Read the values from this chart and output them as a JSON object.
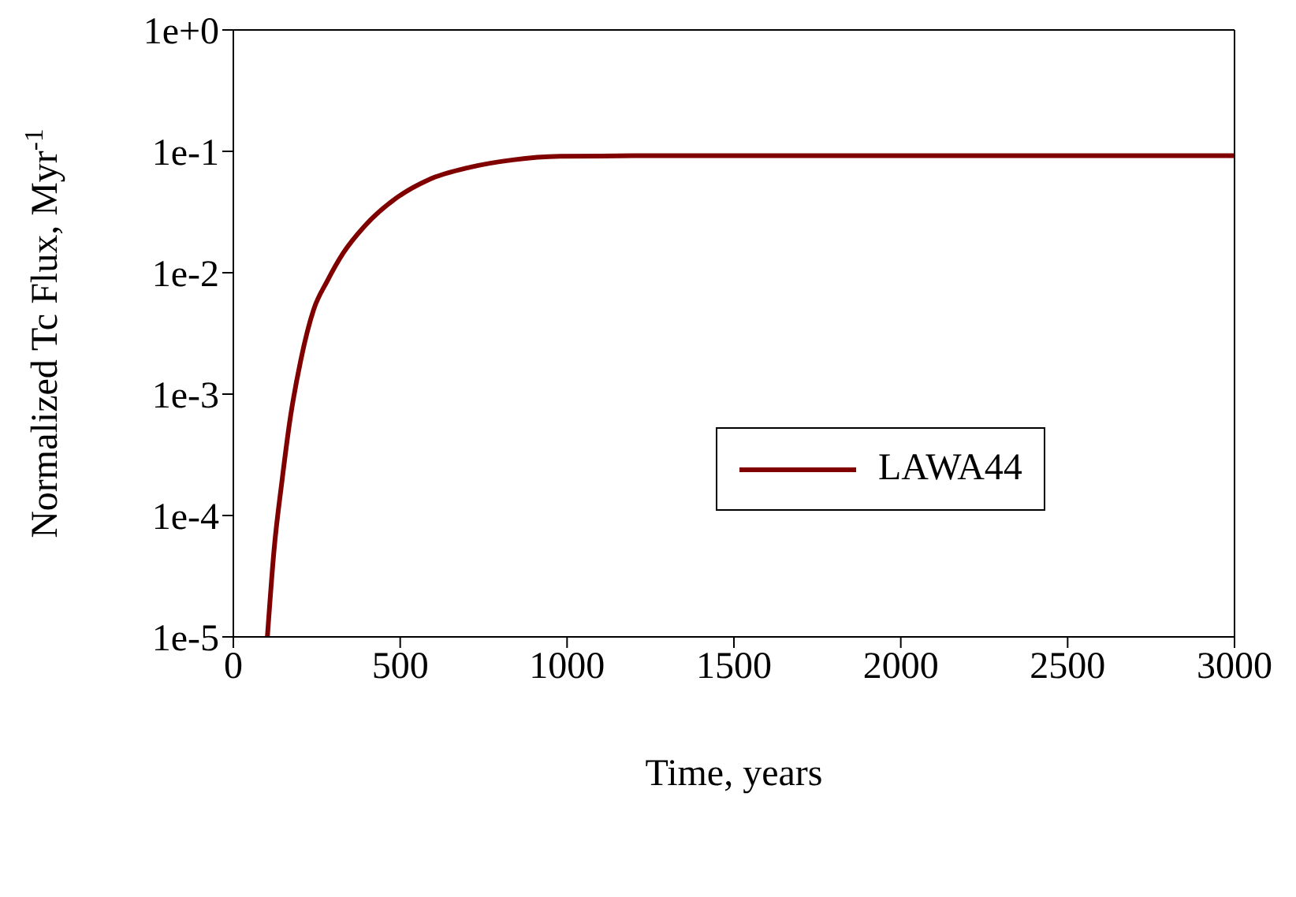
{
  "chart_data": {
    "type": "line",
    "xlabel": "Time, years",
    "ylabel": "Normalized Tc Flux, Myr$^{-1}$",
    "log": "y",
    "legend": "right",
    "marker": "none",
    "line_style": "solid",
    "xlim": [
      0,
      3000
    ],
    "xticks": [
      0,
      500,
      1000,
      1500,
      2000,
      2500,
      3000
    ],
    "ylim": [
      1e-05,
      1
    ],
    "yticks": [
      {
        "value": 1e-05,
        "label": "1e-5"
      },
      {
        "value": 0.0001,
        "label": "1e-4"
      },
      {
        "value": 0.001,
        "label": "1e-3"
      },
      {
        "value": 0.01,
        "label": "1e-2"
      },
      {
        "value": 0.1,
        "label": "1e-1"
      },
      {
        "value": 1,
        "label": "1e+0"
      }
    ],
    "series": [
      {
        "name": "LAWA44",
        "color": "#800000",
        "x": [
          102,
          122,
          146,
          170,
          202,
          241,
          281,
          329,
          392,
          487,
          583,
          710,
          837,
          979,
          1200,
          1500,
          2000,
          2500,
          3000
        ],
        "values": [
          1e-05,
          5.2e-05,
          0.000195,
          0.00062,
          0.0019,
          0.005,
          0.0085,
          0.0145,
          0.024,
          0.041,
          0.058,
          0.074,
          0.085,
          0.091,
          0.092,
          0.092,
          0.092,
          0.092,
          0.092
        ]
      }
    ]
  }
}
